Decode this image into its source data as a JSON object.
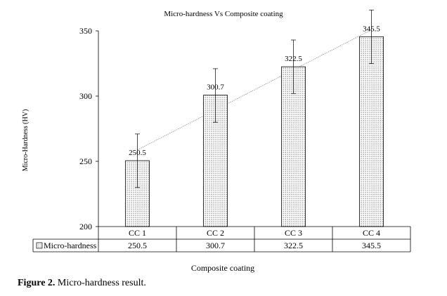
{
  "chart_data": {
    "type": "bar",
    "title": "Micro-hardness Vs Composite coating",
    "xlabel": "Composite coating",
    "ylabel": "Micro-Hardness (HV)",
    "categories": [
      "CC 1",
      "CC 2",
      "CC 3",
      "CC 4"
    ],
    "series": [
      {
        "name": "Micro-hardness",
        "values": [
          250.5,
          300.7,
          322.5,
          345.5
        ]
      }
    ],
    "data_labels": [
      "250.5",
      "300.7",
      "322.5",
      "345.5"
    ],
    "table_values": [
      "250.5",
      "300.7",
      "322.5",
      "345.5"
    ],
    "error_bars": [
      {
        "low": 230,
        "high": 271
      },
      {
        "low": 280,
        "high": 321
      },
      {
        "low": 302,
        "high": 343
      },
      {
        "low": 325,
        "high": 366
      }
    ],
    "ylim": [
      200,
      350
    ],
    "yticks": [
      200,
      250,
      300,
      350
    ],
    "ytick_labels": [
      "200",
      "250",
      "300",
      "350"
    ],
    "trendline": "linear",
    "data_table": true,
    "grid": false,
    "legend": "data-table",
    "bar_pattern": "dotted"
  },
  "caption": {
    "label": "Figure 2.",
    "text": " Micro-hardness result."
  }
}
